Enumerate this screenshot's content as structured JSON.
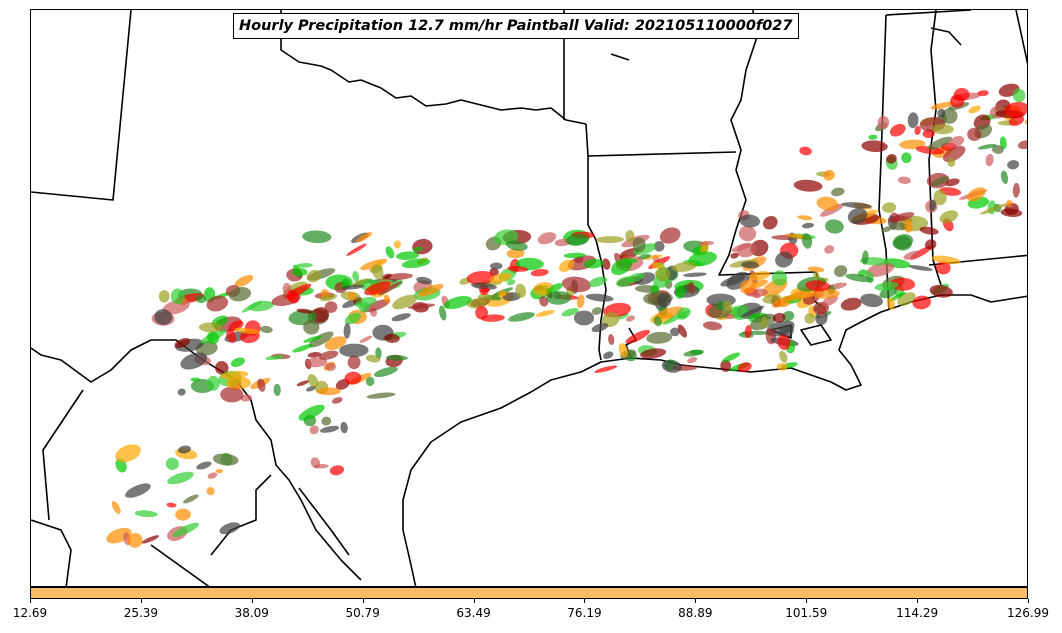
{
  "title": "Hourly Precipitation 12.7 mm/hr Paintball Valid: 202105110000f027",
  "colorbar": {
    "color": "#f9bd66",
    "ticks": [
      "12.69",
      "25.39",
      "38.09",
      "50.79",
      "63.49",
      "76.19",
      "88.89",
      "101.59",
      "114.29",
      "126.99"
    ]
  },
  "member_colors": [
    "#ff0000",
    "#ff8c00",
    "#ffa500",
    "#00c800",
    "#228b22",
    "#a52a2a",
    "#8b0000",
    "#9aa021",
    "#556b2f",
    "#404040",
    "#32cd32",
    "#cd5c5c"
  ]
}
